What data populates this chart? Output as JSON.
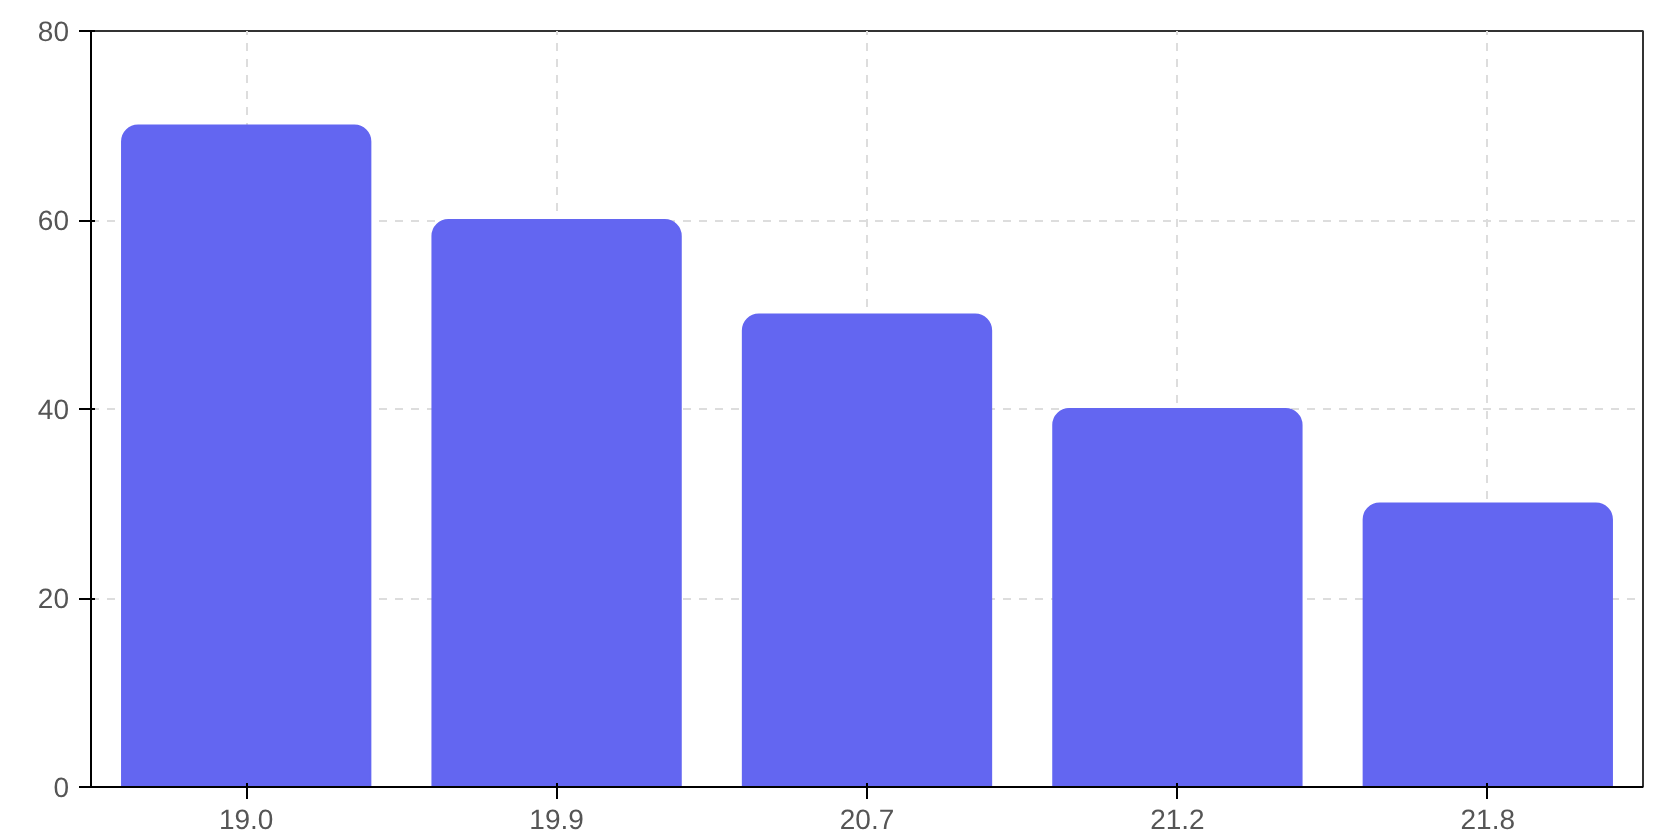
{
  "chart_data": {
    "type": "bar",
    "categories": [
      "19.0",
      "19.9",
      "20.7",
      "21.2",
      "21.8"
    ],
    "values": [
      70,
      60,
      50,
      40,
      30
    ],
    "color": "#6366f1",
    "ylim": [
      0,
      80
    ],
    "yticks": [
      0,
      20,
      40,
      60,
      80
    ],
    "grid": true
  }
}
